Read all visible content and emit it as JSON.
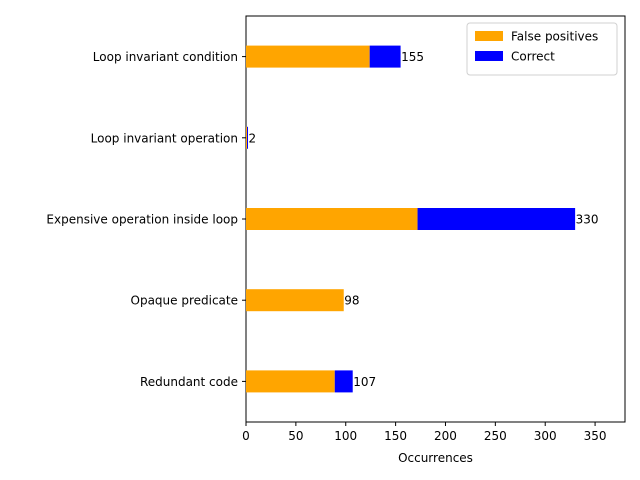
{
  "chart_data": {
    "type": "bar",
    "orientation": "horizontal",
    "stacked": true,
    "categories": [
      "Loop invariant condition",
      "Loop invariant operation",
      "Expensive operation inside loop",
      "Opaque predicate",
      "Redundant code"
    ],
    "series": [
      {
        "name": "False positives",
        "color": "#ffa500",
        "values": [
          124,
          1,
          172,
          98,
          89
        ]
      },
      {
        "name": "Correct",
        "color": "#0000ff",
        "values": [
          31,
          1,
          158,
          0,
          18
        ]
      }
    ],
    "totals": [
      "155",
      "2",
      "330",
      "98",
      "107"
    ],
    "title": "",
    "xlabel": "Occurrences",
    "ylabel": "",
    "xlim": [
      0,
      380
    ],
    "xticks": [
      0,
      50,
      100,
      150,
      200,
      250,
      300,
      350
    ],
    "grid": false,
    "legend_position": "top-right"
  }
}
